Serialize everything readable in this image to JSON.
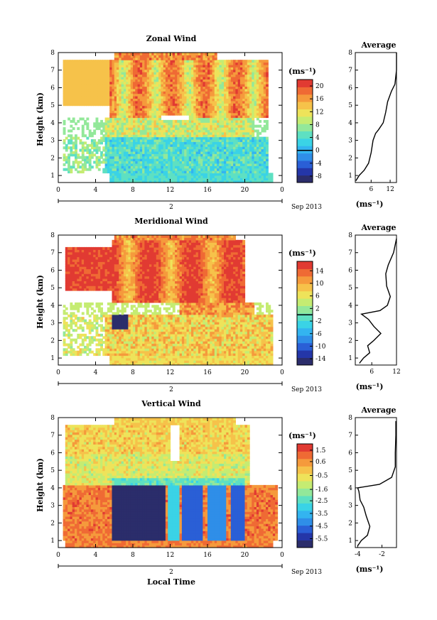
{
  "figure": {
    "x_axis_label": "Local Time",
    "date_label": "Sep 2013",
    "day_label": "2"
  },
  "chart_data": [
    {
      "type": "heatmap",
      "title": "Zonal Wind",
      "ylabel": "Height (km)",
      "xlabel": "",
      "x_ticks": [
        "0",
        "4",
        "8",
        "12",
        "16",
        "20",
        "0"
      ],
      "xlim": [
        0,
        24
      ],
      "ylim": [
        0.6,
        8
      ],
      "y_ticks": [
        "1",
        "2",
        "3",
        "4",
        "5",
        "6",
        "7",
        "8"
      ],
      "colorbar": {
        "unit": "(ms⁻¹)",
        "ticks": [
          "20",
          "16",
          "12",
          "8",
          "4",
          "0",
          "-4",
          "-8"
        ],
        "range": [
          -10,
          22
        ],
        "zero_line": 0,
        "colors": [
          "#2b2d6b",
          "#2436a8",
          "#2a5fd6",
          "#2f8ee8",
          "#33b4f0",
          "#3ad3e6",
          "#5ee0c2",
          "#93e89a",
          "#c5ec72",
          "#eee35a",
          "#f6c24a",
          "#f59a3c",
          "#ef6a34",
          "#e13a32"
        ]
      },
      "profile": {
        "title": "Average",
        "x_ticks": [
          "6",
          "12"
        ],
        "xlim": [
          1,
          14
        ],
        "xlabel": "(ms⁻¹)",
        "points": [
          [
            1.2,
            0.7
          ],
          [
            2.2,
            1.0
          ],
          [
            3.8,
            1.3
          ],
          [
            5.2,
            1.7
          ],
          [
            6.0,
            2.3
          ],
          [
            6.6,
            3.0
          ],
          [
            7.4,
            3.4
          ],
          [
            8.3,
            3.6
          ],
          [
            9.8,
            4.0
          ],
          [
            10.6,
            4.6
          ],
          [
            11.2,
            5.2
          ],
          [
            12.4,
            5.8
          ],
          [
            13.5,
            6.2
          ],
          [
            14.0,
            7.0
          ],
          [
            14.0,
            8.0
          ]
        ]
      }
    },
    {
      "type": "heatmap",
      "title": "Meridional Wind",
      "ylabel": "Height (km)",
      "xlabel": "",
      "x_ticks": [
        "0",
        "4",
        "8",
        "12",
        "16",
        "20",
        "0"
      ],
      "xlim": [
        0,
        24
      ],
      "ylim": [
        0.6,
        8
      ],
      "y_ticks": [
        "1",
        "2",
        "3",
        "4",
        "5",
        "6",
        "7",
        "8"
      ],
      "colorbar": {
        "unit": "(ms⁻¹)",
        "ticks": [
          "14",
          "10",
          "6",
          "2",
          "-2",
          "-6",
          "-10",
          "-14"
        ],
        "range": [
          -16,
          17
        ],
        "zero_line": 0,
        "colors": [
          "#2b2d6b",
          "#2436a8",
          "#2a5fd6",
          "#2f8ee8",
          "#33b4f0",
          "#3ad3e6",
          "#5ee0c2",
          "#93e89a",
          "#c5ec72",
          "#eee35a",
          "#f6c24a",
          "#f59a3c",
          "#ef6a34",
          "#e13a32"
        ]
      },
      "profile": {
        "title": "Average",
        "x_ticks": [
          "6",
          "12"
        ],
        "xlim": [
          2,
          12
        ],
        "xlabel": "(ms⁻¹)",
        "points": [
          [
            3.0,
            0.7
          ],
          [
            4.0,
            1.0
          ],
          [
            5.5,
            1.3
          ],
          [
            5.0,
            1.7
          ],
          [
            6.5,
            2.0
          ],
          [
            8.2,
            2.4
          ],
          [
            6.5,
            2.8
          ],
          [
            5.2,
            3.2
          ],
          [
            3.5,
            3.5
          ],
          [
            8.0,
            3.7
          ],
          [
            9.8,
            4.0
          ],
          [
            10.5,
            4.5
          ],
          [
            9.6,
            5.1
          ],
          [
            9.4,
            5.8
          ],
          [
            10.0,
            6.3
          ],
          [
            11.3,
            7.0
          ],
          [
            12.0,
            7.8
          ]
        ]
      }
    },
    {
      "type": "heatmap",
      "title": "Vertical Wind",
      "ylabel": "Height (km)",
      "xlabel": "Local Time",
      "x_ticks": [
        "0",
        "4",
        "8",
        "12",
        "16",
        "20",
        "0"
      ],
      "xlim": [
        0,
        24
      ],
      "ylim": [
        0.6,
        8
      ],
      "y_ticks": [
        "1",
        "2",
        "3",
        "4",
        "5",
        "6",
        "7",
        "8"
      ],
      "colorbar": {
        "unit": "(ms⁻¹)",
        "ticks": [
          "1.5",
          "0.6",
          "-0.5",
          "-1.6",
          "-2.5",
          "-3.5",
          "-4.5",
          "-5.5"
        ],
        "range": [
          -6.2,
          2.0
        ],
        "zero_line": null,
        "colors": [
          "#2b2d6b",
          "#2436a8",
          "#2a5fd6",
          "#2f8ee8",
          "#33b4f0",
          "#3ad3e6",
          "#5ee0c2",
          "#93e89a",
          "#c5ec72",
          "#eee35a",
          "#f6c24a",
          "#f59a3c",
          "#ef6a34",
          "#e13a32"
        ]
      },
      "profile": {
        "title": "Average",
        "x_ticks": [
          "-4",
          "-2"
        ],
        "xlim": [
          -4.2,
          -0.8
        ],
        "xlabel": "(ms⁻¹)",
        "points": [
          [
            -4.0,
            0.7
          ],
          [
            -3.7,
            1.0
          ],
          [
            -3.2,
            1.3
          ],
          [
            -3.0,
            1.8
          ],
          [
            -3.3,
            2.4
          ],
          [
            -3.5,
            2.9
          ],
          [
            -3.8,
            3.3
          ],
          [
            -3.9,
            3.8
          ],
          [
            -4.0,
            4.0
          ],
          [
            -2.2,
            4.2
          ],
          [
            -1.2,
            4.6
          ],
          [
            -0.9,
            5.2
          ],
          [
            -0.9,
            6.0
          ],
          [
            -0.85,
            7.0
          ],
          [
            -0.85,
            7.8
          ]
        ]
      }
    }
  ]
}
